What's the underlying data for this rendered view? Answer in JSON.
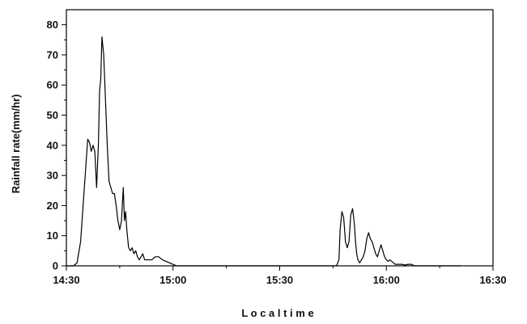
{
  "chart_data": {
    "type": "line",
    "xlabel": "L o c a l  t i m e",
    "ylabel": "Rainfall rate(mm/hr)",
    "xlim": [
      "14:30",
      "16:30"
    ],
    "ylim": [
      0,
      85
    ],
    "x_ticks": [
      "14:30",
      "15:00",
      "15:30",
      "16:00",
      "16:30"
    ],
    "y_ticks": [
      "0",
      "10",
      "20",
      "30",
      "40",
      "50",
      "60",
      "70",
      "80"
    ],
    "grid": false,
    "series": [
      {
        "color": "#000000",
        "x": [
          "14:30",
          "14:32",
          "14:33",
          "14:34",
          "14:35",
          "14:36",
          "14:36:30",
          "14:37",
          "14:37:30",
          "14:38",
          "14:38:30",
          "14:39",
          "14:39:20",
          "14:39:40",
          "14:40",
          "14:40:30",
          "14:41",
          "14:41:30",
          "14:42",
          "14:42:30",
          "14:43",
          "14:43:30",
          "14:44",
          "14:44:30",
          "14:45",
          "14:45:30",
          "14:46",
          "14:46:20",
          "14:46:40",
          "14:47",
          "14:47:30",
          "14:48",
          "14:48:30",
          "14:49",
          "14:49:30",
          "14:50",
          "14:50:30",
          "14:51",
          "14:51:30",
          "14:52",
          "14:52:30",
          "14:53",
          "14:54",
          "14:55",
          "14:56",
          "14:57",
          "14:58",
          "14:59",
          "15:00",
          "15:01",
          "15:10",
          "15:20",
          "15:30",
          "15:40",
          "15:45",
          "15:46",
          "15:46:40",
          "15:47",
          "15:47:30",
          "15:48",
          "15:48:30",
          "15:49",
          "15:49:30",
          "15:50",
          "15:50:30",
          "15:51",
          "15:51:20",
          "15:51:40",
          "15:52",
          "15:52:30",
          "15:53",
          "15:53:30",
          "15:54",
          "15:54:30",
          "15:55",
          "15:55:30",
          "15:56",
          "15:56:30",
          "15:57",
          "15:57:30",
          "15:58",
          "15:58:30",
          "15:59",
          "15:59:30",
          "16:00",
          "16:00:30",
          "16:01",
          "16:01:30",
          "16:02",
          "16:02:30",
          "16:03",
          "16:03:30",
          "16:04",
          "16:04:30",
          "16:05",
          "16:05:30",
          "16:06",
          "16:07",
          "16:08",
          "16:09",
          "16:10",
          "16:12",
          "16:14",
          "16:16",
          "16:18",
          "16:20",
          "16:21"
        ],
        "y": [
          0,
          0,
          1,
          8,
          25,
          42,
          41,
          38,
          40,
          38,
          26,
          40,
          58,
          62,
          76,
          70,
          55,
          40,
          28,
          26,
          24,
          24,
          20,
          15,
          12,
          15,
          26,
          15,
          18,
          12,
          6,
          5,
          6,
          4,
          5,
          3,
          2,
          3,
          4,
          2,
          2,
          2,
          2,
          3,
          3,
          2,
          1.5,
          1,
          0.5,
          0,
          0,
          0,
          0,
          0,
          0,
          0,
          2,
          12,
          18,
          16,
          8,
          6,
          8,
          17,
          19,
          14,
          8,
          4,
          2,
          1,
          2,
          3,
          5,
          9,
          11,
          9,
          8,
          6,
          4,
          3,
          5,
          7,
          5,
          3,
          2,
          1.5,
          2,
          1.5,
          1,
          0.5,
          0.5,
          0.5,
          0.5,
          0.5,
          0.3,
          0.3,
          0.5,
          0.5,
          0,
          0,
          0,
          0,
          0,
          0,
          0,
          0,
          0
        ]
      }
    ]
  }
}
